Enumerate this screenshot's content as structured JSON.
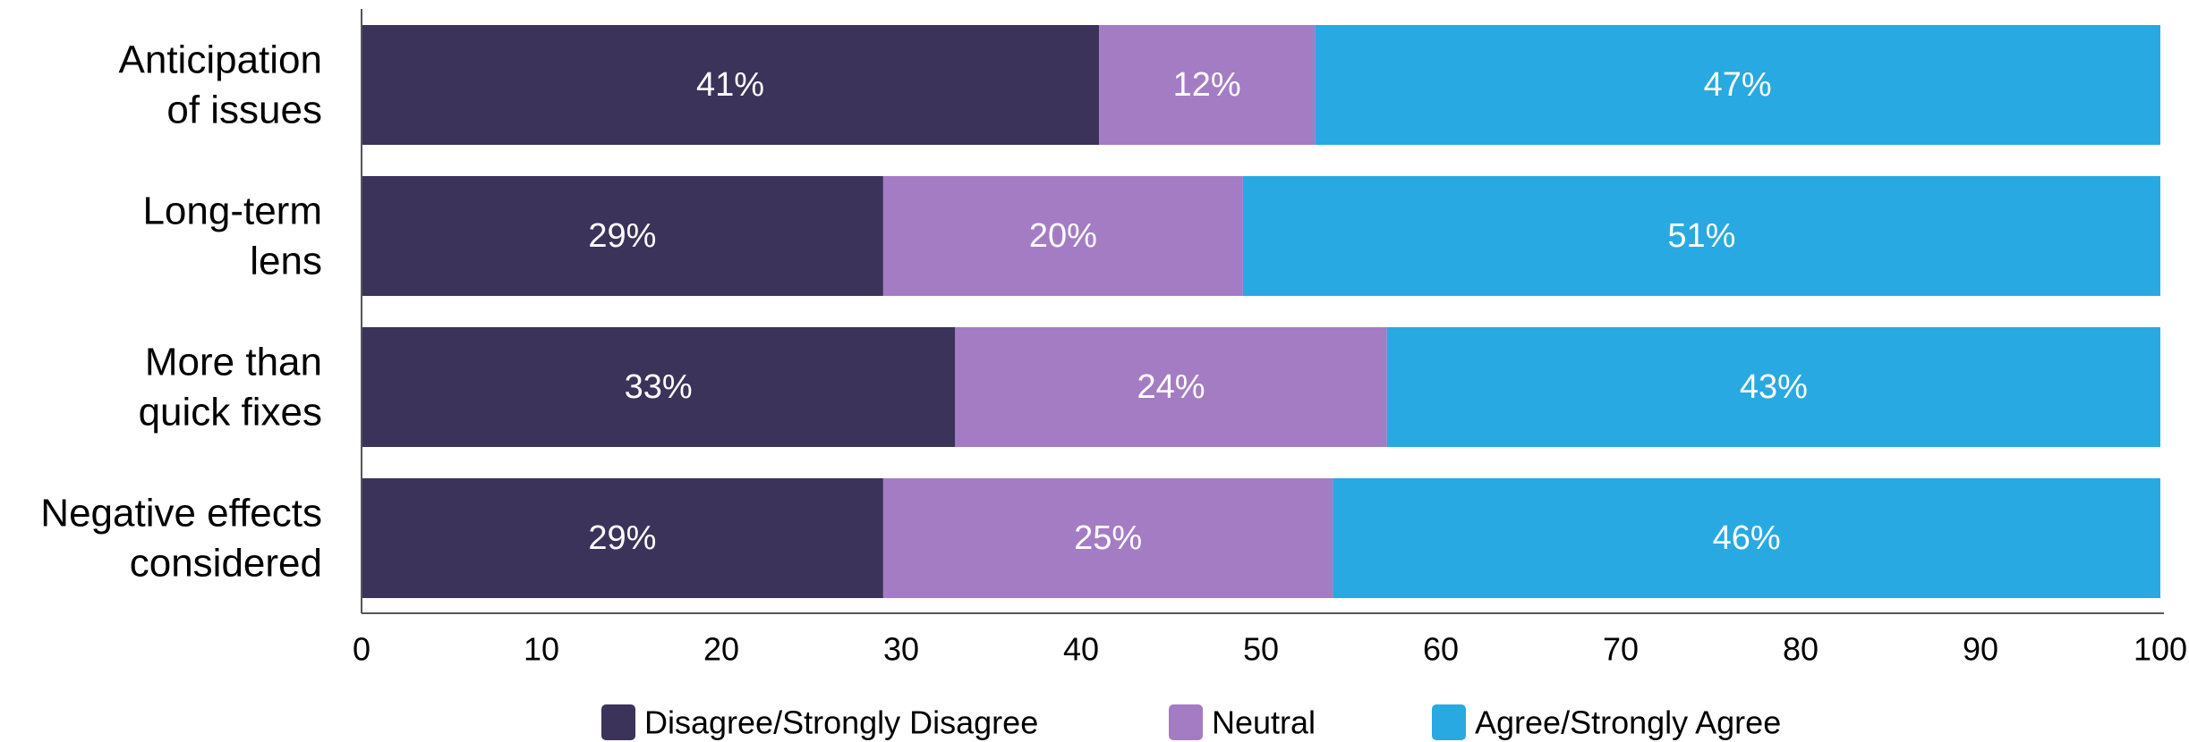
{
  "chart_data": {
    "type": "bar",
    "orientation": "horizontal",
    "stacked": true,
    "categories": [
      [
        "Anticipation",
        "of issues"
      ],
      [
        "Long-term",
        "lens"
      ],
      [
        "More than",
        "quick fixes"
      ],
      [
        "Negative effects",
        "considered"
      ]
    ],
    "series": [
      {
        "name": "Disagree/Strongly Disagree",
        "color": "#3b3359",
        "values": [
          41,
          29,
          33,
          29
        ],
        "labels": [
          "41%",
          "29%",
          "33%",
          "29%"
        ]
      },
      {
        "name": "Neutral",
        "color": "#a47cc4",
        "values": [
          12,
          20,
          24,
          25
        ],
        "labels": [
          "12%",
          "20%",
          "24%",
          "25%"
        ]
      },
      {
        "name": "Agree/Strongly Agree",
        "color": "#29a9e1",
        "values": [
          47,
          51,
          43,
          46
        ],
        "labels": [
          "47%",
          "51%",
          "43%",
          "46%"
        ]
      }
    ],
    "xlim": [
      0,
      100
    ],
    "xticks": [
      "0",
      "10",
      "20",
      "30",
      "40",
      "50",
      "60",
      "70",
      "80",
      "90",
      "100"
    ],
    "grid": false,
    "legend_position": "bottom",
    "title": "",
    "xlabel": "",
    "ylabel": ""
  }
}
